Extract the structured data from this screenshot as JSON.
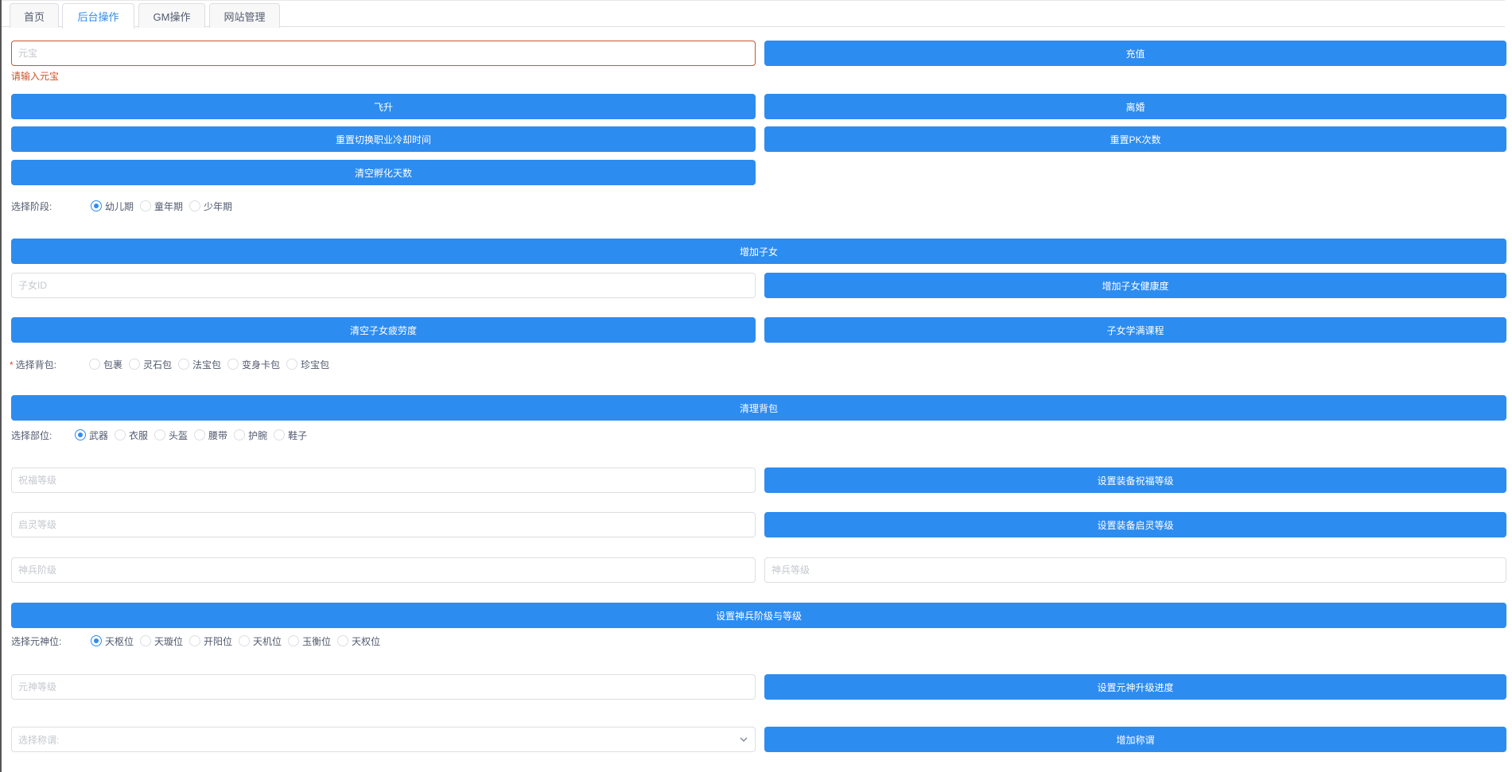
{
  "tabs": [
    {
      "label": "首页"
    },
    {
      "label": "后台操作",
      "active": true
    },
    {
      "label": "GM操作"
    },
    {
      "label": "网站管理"
    }
  ],
  "recharge": {
    "placeholder": "元宝",
    "error": "请输入元宝",
    "button": "充值"
  },
  "buttons": {
    "ascend": "飞升",
    "divorce": "离婚",
    "reset_class_cd": "重置切换职业冷却时间",
    "reset_pk": "重置PK次数",
    "clear_hatch": "清空孵化天数",
    "add_child": "增加子女",
    "add_child_health": "增加子女健康度",
    "clear_child_fatigue": "清空子女疲劳度",
    "child_full_course": "子女学满课程",
    "clear_bag": "清理背包",
    "set_bless": "设置装备祝福等级",
    "set_enlighten": "设置装备启灵等级",
    "set_weapon": "设置神兵阶级与等级",
    "set_yuanshen": "设置元神升级进度",
    "add_title": "增加称谓"
  },
  "stage": {
    "label": "选择阶段:",
    "options": [
      "幼儿期",
      "童年期",
      "少年期"
    ],
    "selected": 0
  },
  "child_id": {
    "placeholder": "子女ID"
  },
  "bag": {
    "label": "选择背包:",
    "required": "*",
    "options": [
      "包裹",
      "灵石包",
      "法宝包",
      "变身卡包",
      "珍宝包"
    ],
    "selected": -1
  },
  "part": {
    "label": "选择部位:",
    "options": [
      "武器",
      "衣服",
      "头盔",
      "腰带",
      "护腕",
      "鞋子"
    ],
    "selected": 0
  },
  "inputs": {
    "bless": "祝福等级",
    "enlighten": "启灵等级",
    "weapon_rank": "神兵阶级",
    "weapon_level": "神兵等级",
    "yuanshen_level": "元神等级"
  },
  "yuanshen": {
    "label": "选择元神位:",
    "options": [
      "天枢位",
      "天璇位",
      "开阳位",
      "天机位",
      "玉衡位",
      "天权位"
    ],
    "selected": 0
  },
  "title_select": {
    "placeholder": "选择称谓:",
    "icon": "chevron-down-icon"
  },
  "colors": {
    "primary": "#2d8cf0",
    "error": "#c9552e"
  }
}
